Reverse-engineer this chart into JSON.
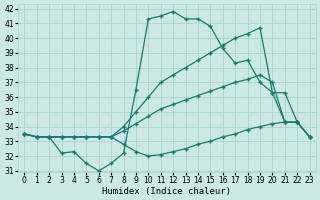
{
  "xlabel": "Humidex (Indice chaleur)",
  "x": [
    0,
    1,
    2,
    3,
    4,
    5,
    6,
    7,
    8,
    9,
    10,
    11,
    12,
    13,
    14,
    15,
    16,
    17,
    18,
    19,
    20,
    21,
    22,
    23
  ],
  "line_main": [
    33.5,
    33.3,
    33.3,
    32.2,
    32.3,
    31.5,
    31.0,
    31.5,
    32.2,
    36.5,
    41.3,
    41.5,
    41.8,
    41.3,
    41.3,
    40.8,
    39.3,
    38.3,
    38.5,
    37.0,
    36.3,
    34.3,
    34.3,
    33.3
  ],
  "line_a": [
    33.5,
    33.3,
    33.3,
    33.3,
    33.3,
    33.3,
    33.3,
    33.3,
    34.0,
    35.0,
    36.0,
    37.0,
    37.5,
    38.0,
    38.5,
    39.0,
    39.5,
    40.0,
    40.3,
    40.7,
    36.3,
    36.3,
    34.3,
    33.3
  ],
  "line_b": [
    33.5,
    33.3,
    33.3,
    33.3,
    33.3,
    33.3,
    33.3,
    33.3,
    33.7,
    34.2,
    34.7,
    35.2,
    35.5,
    35.8,
    36.1,
    36.4,
    36.7,
    37.0,
    37.2,
    37.5,
    37.0,
    34.3,
    34.3,
    33.3
  ],
  "line_c": [
    33.5,
    33.3,
    33.3,
    33.3,
    33.3,
    33.3,
    33.3,
    33.3,
    32.8,
    32.3,
    32.0,
    32.1,
    32.3,
    32.5,
    32.8,
    33.0,
    33.3,
    33.5,
    33.8,
    34.0,
    34.2,
    34.3,
    34.3,
    33.3
  ],
  "bg_color": "#cce8e4",
  "grid_color": "#aad4cf",
  "line_color": "#1a7a6e",
  "ylim_min": 31,
  "ylim_max": 42,
  "yticks": [
    31,
    32,
    33,
    34,
    35,
    36,
    37,
    38,
    39,
    40,
    41,
    42
  ],
  "xticks": [
    0,
    1,
    2,
    3,
    4,
    5,
    6,
    7,
    8,
    9,
    10,
    11,
    12,
    13,
    14,
    15,
    16,
    17,
    18,
    19,
    20,
    21,
    22,
    23
  ]
}
